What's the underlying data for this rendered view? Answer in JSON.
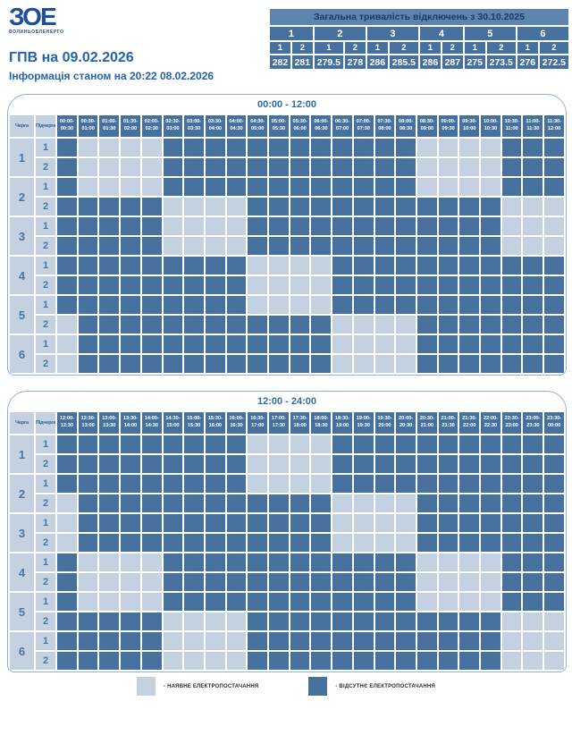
{
  "logo": {
    "text": "ЗОЕ",
    "subtext": "ВОЛИНЬОБЛЕНЕРГО"
  },
  "page": {
    "title": "ГПВ на 09.02.2026",
    "subtitle": "Інформація станом на 20:22 08.02.2026"
  },
  "summary_table": {
    "title": "Загальна тривалість відключень з 30.10.2025",
    "group_headers": [
      "1",
      "2",
      "3",
      "4",
      "5",
      "6"
    ],
    "subgroup_headers": [
      "1",
      "2"
    ],
    "values": [
      "282",
      "281",
      "279.5",
      "278",
      "286",
      "285.5",
      "286",
      "287",
      "275",
      "273.5",
      "276",
      "272.5"
    ]
  },
  "grid_labels": {
    "queue_header": "Черга",
    "subqueue_header": "Підчерга"
  },
  "legend": {
    "items": [
      {
        "state": "on",
        "label": "- НАЯВНЕ ЕЛЕКТРОПОСТАЧАННЯ"
      },
      {
        "state": "off",
        "label": "- ВІДСУТНЄ ЕЛЕКТРОПОСТАЧАННЯ"
      }
    ]
  },
  "colors": {
    "power_on": "#c3d1e1",
    "power_off": "#46719e",
    "summary_title_bg": "#5d84ad",
    "accent_text": "#2263ae",
    "grid_border": "#8fb0d8"
  },
  "chart_data": [
    {
      "type": "heatmap",
      "title": "00:00 - 12:00",
      "cell_encoding": {
        "1": "відсутнє електропостачання",
        "0": "наявне електропостачання"
      },
      "x_labels": [
        "00:00-00:30",
        "00:30-01:00",
        "01:00-01:30",
        "01:30-02:00",
        "02:00-02:30",
        "02:30-03:00",
        "03:00-03:30",
        "03:30-04:00",
        "04:00-04:30",
        "04:30-05:00",
        "05:00-05:30",
        "05:30-06:00",
        "06:00-06:30",
        "06:30-07:00",
        "07:00-07:30",
        "07:30-08:00",
        "08:00-08:30",
        "08:30-09:00",
        "09:00-09:30",
        "09:30-10:00",
        "10:00-10:30",
        "10:30-11:00",
        "11:00-11:30",
        "11:30-12:00"
      ],
      "rows": [
        {
          "queue": "1",
          "subqueue": "1",
          "cells": "100001111111111110000111"
        },
        {
          "queue": "1",
          "subqueue": "2",
          "cells": "100001111111111110000111"
        },
        {
          "queue": "2",
          "subqueue": "1",
          "cells": "100001111111111110000111"
        },
        {
          "queue": "2",
          "subqueue": "2",
          "cells": "111110000111111111111000"
        },
        {
          "queue": "3",
          "subqueue": "1",
          "cells": "111110000111111111111000"
        },
        {
          "queue": "3",
          "subqueue": "2",
          "cells": "111110000111111111111000"
        },
        {
          "queue": "4",
          "subqueue": "1",
          "cells": "111111111000011111111111"
        },
        {
          "queue": "4",
          "subqueue": "2",
          "cells": "111111111000011111111111"
        },
        {
          "queue": "5",
          "subqueue": "1",
          "cells": "111111111000011111111111"
        },
        {
          "queue": "5",
          "subqueue": "2",
          "cells": "011111111111100001111111"
        },
        {
          "queue": "6",
          "subqueue": "1",
          "cells": "011111111111100001111111"
        },
        {
          "queue": "6",
          "subqueue": "2",
          "cells": "011111111111100001111111"
        }
      ]
    },
    {
      "type": "heatmap",
      "title": "12:00 - 24:00",
      "cell_encoding": {
        "1": "відсутнє електропостачання",
        "0": "наявне електропостачання"
      },
      "x_labels": [
        "12:00-12:30",
        "12:30-13:00",
        "13:00-13:30",
        "13:30-14:00",
        "14:00-14:30",
        "14:30-15:00",
        "15:00-15:30",
        "15:30-16:00",
        "16:00-16:30",
        "16:30-17:00",
        "17:00-17:30",
        "17:30-18:00",
        "18:00-18:30",
        "18:30-19:00",
        "19:00-19:30",
        "19:30-20:00",
        "20:00-20:30",
        "20:30-21:00",
        "21:00-21:30",
        "21:30-22:00",
        "22:00-22:30",
        "22:30-23:00",
        "23:00-23:30",
        "23:30-00:00"
      ],
      "rows": [
        {
          "queue": "1",
          "subqueue": "1",
          "cells": "111111111000011111111111"
        },
        {
          "queue": "1",
          "subqueue": "2",
          "cells": "111111111000011111111111"
        },
        {
          "queue": "2",
          "subqueue": "1",
          "cells": "111111111000011111111111"
        },
        {
          "queue": "2",
          "subqueue": "2",
          "cells": "011111111111100001111111"
        },
        {
          "queue": "3",
          "subqueue": "1",
          "cells": "011111111111100001111111"
        },
        {
          "queue": "3",
          "subqueue": "2",
          "cells": "011111111111100001111111"
        },
        {
          "queue": "4",
          "subqueue": "1",
          "cells": "100001111111111110000111"
        },
        {
          "queue": "4",
          "subqueue": "2",
          "cells": "100001111111111110000111"
        },
        {
          "queue": "5",
          "subqueue": "1",
          "cells": "100001111111111110000111"
        },
        {
          "queue": "5",
          "subqueue": "2",
          "cells": "111110000111111111111000"
        },
        {
          "queue": "6",
          "subqueue": "1",
          "cells": "111110000111111111111000"
        },
        {
          "queue": "6",
          "subqueue": "2",
          "cells": "111110000111111111111000"
        }
      ]
    }
  ]
}
